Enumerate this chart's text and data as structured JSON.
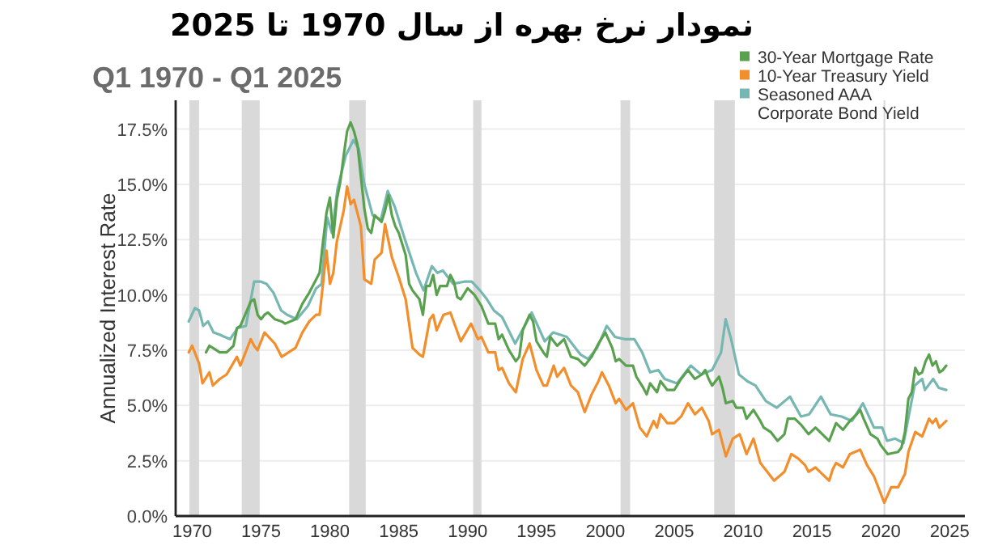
{
  "chart_data": {
    "type": "line",
    "title": "نمودار نرخ بهره از سال 1970 تا 2025",
    "subtitle": "Q1 1970 - Q1 2025",
    "ylabel": "Annualized Interest Rate",
    "xlim": [
      1968.8,
      2026.1
    ],
    "xticks": [
      1970,
      1975,
      1980,
      1985,
      1990,
      1995,
      2000,
      2005,
      2010,
      2015,
      2020,
      2025
    ],
    "ylim": [
      0,
      18.8
    ],
    "yticks": [
      {
        "value": 0,
        "label": "0.0%"
      },
      {
        "value": 2.5,
        "label": "2.5%"
      },
      {
        "value": 5,
        "label": "5.0%"
      },
      {
        "value": 7.5,
        "label": "7.5%"
      },
      {
        "value": 10,
        "label": "10.0%"
      },
      {
        "value": 12.5,
        "label": "12.5%"
      },
      {
        "value": 15,
        "label": "15.0%"
      },
      {
        "value": 17.5,
        "label": "17.5%"
      }
    ],
    "grid": "y",
    "legend": "top right",
    "bands": [
      {
        "axis": "x",
        "from": 1969.8,
        "to": 1970.5,
        "color": "#d9d9d9"
      },
      {
        "axis": "x",
        "from": 1973.6,
        "to": 1974.9,
        "color": "#d9d9d9"
      },
      {
        "axis": "x",
        "from": 1981.4,
        "to": 1982.6,
        "color": "#d9d9d9"
      },
      {
        "axis": "x",
        "from": 1990.4,
        "to": 1991.0,
        "color": "#d9d9d9"
      },
      {
        "axis": "x",
        "from": 2001.1,
        "to": 2001.8,
        "color": "#d9d9d9"
      },
      {
        "axis": "x",
        "from": 2007.9,
        "to": 2009.4,
        "color": "#d9d9d9"
      },
      {
        "axis": "x",
        "from": 2020.2,
        "to": 2020.3,
        "color": "#d9d9d9"
      }
    ],
    "series": [
      {
        "name": "30-Year Mortgage Rate",
        "color": "#59a14f",
        "x": [
          1971.0,
          1971.25,
          1971.5,
          1972.0,
          1972.5,
          1973.0,
          1973.25,
          1973.5,
          1974.25,
          1974.5,
          1974.75,
          1975.0,
          1975.25,
          1975.5,
          1976.0,
          1976.5,
          1976.75,
          1977.5,
          1978.0,
          1978.5,
          1979.0,
          1979.25,
          1979.5,
          1979.75,
          1980.0,
          1980.25,
          1980.5,
          1980.75,
          1981.0,
          1981.25,
          1981.5,
          1981.75,
          1982.0,
          1982.5,
          1982.75,
          1983.0,
          1983.25,
          1983.75,
          1984.0,
          1984.25,
          1984.5,
          1984.75,
          1985.0,
          1985.5,
          1985.75,
          1986.0,
          1986.5,
          1986.75,
          1987.0,
          1987.25,
          1987.5,
          1987.75,
          1988.0,
          1988.5,
          1988.75,
          1989.0,
          1989.25,
          1989.5,
          1990.0,
          1990.5,
          1991.0,
          1991.5,
          1992.0,
          1992.25,
          1992.5,
          1993.0,
          1993.5,
          1993.75,
          1994.0,
          1994.5,
          1994.75,
          1995.0,
          1995.5,
          1995.75,
          1996.0,
          1996.5,
          1997.0,
          1997.5,
          1998.0,
          1998.5,
          1999.0,
          1999.5,
          2000.0,
          2000.5,
          2000.75,
          2001.0,
          2001.5,
          2002.0,
          2002.25,
          2002.75,
          2003.0,
          2003.25,
          2003.75,
          2004.0,
          2004.5,
          2005.0,
          2005.5,
          2006.0,
          2006.5,
          2007.0,
          2007.25,
          2007.5,
          2007.75,
          2008.25,
          2008.5,
          2008.75,
          2009.25,
          2009.5,
          2010.0,
          2010.25,
          2010.75,
          2011.25,
          2011.5,
          2012.0,
          2012.5,
          2013.0,
          2013.25,
          2013.75,
          2014.25,
          2014.75,
          2015.25,
          2015.75,
          2016.25,
          2016.5,
          2016.75,
          2017.25,
          2017.75,
          2018.25,
          2018.5,
          2018.75,
          2019.25,
          2019.75,
          2020.0,
          2020.5,
          2021.25,
          2021.5,
          2021.75,
          2022.0,
          2022.25,
          2022.5,
          2022.75,
          2023.0,
          2023.25,
          2023.5,
          2023.75,
          2024.0,
          2024.25,
          2024.5,
          2024.75
        ],
        "values": [
          7.4,
          7.7,
          7.6,
          7.4,
          7.4,
          7.7,
          8.5,
          8.6,
          9.7,
          9.8,
          9.1,
          8.9,
          9.1,
          9.2,
          8.9,
          8.8,
          8.7,
          8.9,
          9.6,
          10.1,
          10.7,
          11.0,
          12.4,
          13.7,
          14.4,
          12.6,
          14.3,
          15.1,
          16.3,
          17.4,
          17.8,
          17.4,
          16.8,
          13.9,
          13.0,
          12.8,
          13.6,
          13.3,
          13.8,
          14.5,
          13.6,
          13.1,
          12.8,
          11.8,
          10.5,
          10.2,
          9.8,
          9.1,
          10.4,
          10.4,
          10.9,
          10.0,
          10.4,
          10.4,
          10.9,
          10.6,
          9.9,
          9.8,
          10.3,
          10.0,
          9.5,
          8.7,
          8.7,
          8.0,
          8.2,
          7.5,
          7.0,
          7.2,
          8.4,
          9.1,
          8.8,
          7.9,
          7.4,
          7.2,
          8.1,
          7.7,
          8.0,
          7.2,
          7.1,
          6.8,
          7.2,
          7.8,
          8.3,
          7.6,
          7.0,
          7.1,
          6.8,
          6.8,
          6.3,
          5.8,
          5.5,
          6.0,
          5.6,
          6.1,
          5.7,
          5.7,
          6.2,
          6.6,
          6.2,
          6.4,
          6.6,
          6.2,
          5.9,
          6.3,
          5.8,
          5.1,
          5.2,
          4.9,
          4.9,
          4.4,
          4.8,
          4.3,
          4.0,
          3.8,
          3.4,
          3.7,
          4.4,
          4.4,
          4.1,
          3.7,
          4.0,
          3.7,
          3.4,
          3.8,
          4.2,
          3.9,
          4.3,
          4.6,
          4.8,
          4.4,
          3.7,
          3.5,
          3.2,
          2.8,
          2.9,
          3.1,
          3.8,
          5.3,
          5.6,
          6.7,
          6.4,
          6.5,
          7.0,
          7.3,
          6.8,
          7.0,
          6.5,
          6.6,
          6.8
        ]
      },
      {
        "name": "10-Year Treasury Yield",
        "color": "#f28e2b",
        "x": [
          1969.75,
          1970.0,
          1970.5,
          1970.75,
          1971.25,
          1971.5,
          1972.0,
          1972.5,
          1973.25,
          1973.5,
          1974.25,
          1974.5,
          1974.75,
          1975.25,
          1976.0,
          1976.5,
          1977.0,
          1977.5,
          1978.0,
          1978.5,
          1979.0,
          1979.25,
          1979.5,
          1979.75,
          1980.0,
          1980.25,
          1980.5,
          1981.0,
          1981.25,
          1981.5,
          1981.75,
          1982.25,
          1982.5,
          1983.0,
          1983.25,
          1983.75,
          1984.0,
          1984.5,
          1985.0,
          1985.5,
          1986.0,
          1986.5,
          1986.75,
          1987.25,
          1987.5,
          1987.75,
          1988.25,
          1988.75,
          1989.5,
          1990.25,
          1990.75,
          1991.0,
          1991.5,
          1992.0,
          1992.25,
          1992.5,
          1993.0,
          1993.5,
          1994.0,
          1994.5,
          1995.0,
          1995.5,
          1995.75,
          1996.25,
          1996.5,
          1997.0,
          1997.5,
          1998.0,
          1998.5,
          1999.0,
          1999.5,
          1999.75,
          2000.25,
          2000.75,
          2001.0,
          2001.5,
          2002.0,
          2002.5,
          2003.0,
          2003.5,
          2003.75,
          2004.0,
          2004.5,
          2005.0,
          2005.5,
          2006.0,
          2006.5,
          2007.0,
          2007.5,
          2007.75,
          2008.25,
          2008.5,
          2008.75,
          2009.25,
          2009.75,
          2010.25,
          2010.75,
          2011.25,
          2011.75,
          2012.25,
          2013.0,
          2013.5,
          2014.0,
          2014.5,
          2014.75,
          2015.25,
          2015.75,
          2016.25,
          2016.5,
          2016.75,
          2017.25,
          2017.75,
          2018.5,
          2019.0,
          2019.5,
          2019.75,
          2020.25,
          2020.75,
          2021.25,
          2021.75,
          2022.0,
          2022.5,
          2023.0,
          2023.5,
          2023.75,
          2024.0,
          2024.25,
          2024.75
        ],
        "values": [
          7.4,
          7.7,
          6.9,
          6.0,
          6.5,
          5.9,
          6.2,
          6.4,
          7.2,
          6.8,
          8.0,
          7.7,
          7.5,
          8.3,
          7.8,
          7.2,
          7.4,
          7.6,
          8.3,
          8.8,
          9.1,
          9.1,
          10.5,
          12.0,
          10.5,
          11.0,
          12.4,
          13.8,
          14.9,
          14.1,
          14.3,
          13.1,
          10.7,
          10.5,
          11.6,
          11.9,
          13.2,
          11.7,
          10.8,
          9.8,
          7.6,
          7.3,
          7.2,
          8.9,
          9.1,
          8.4,
          9.1,
          9.2,
          7.9,
          8.7,
          8.0,
          8.1,
          7.4,
          7.4,
          6.6,
          6.7,
          6.0,
          5.6,
          7.1,
          7.8,
          6.6,
          5.9,
          5.9,
          6.8,
          6.3,
          6.7,
          5.9,
          5.6,
          4.7,
          5.5,
          6.1,
          6.5,
          5.9,
          5.1,
          5.3,
          4.8,
          5.1,
          4.0,
          3.6,
          4.3,
          4.0,
          4.6,
          4.2,
          4.2,
          4.5,
          5.1,
          4.6,
          4.9,
          4.3,
          3.7,
          3.9,
          3.3,
          2.7,
          3.5,
          3.7,
          2.8,
          3.5,
          2.4,
          2.0,
          1.6,
          2.0,
          2.8,
          2.6,
          2.3,
          2.0,
          2.2,
          1.9,
          1.6,
          2.1,
          2.4,
          2.2,
          2.8,
          3.0,
          2.3,
          1.8,
          1.4,
          0.6,
          1.3,
          1.3,
          1.9,
          2.9,
          3.8,
          3.6,
          4.4,
          4.2,
          4.4,
          4.0,
          4.3
        ]
      },
      {
        "name": "Seasoned AAA Corporate Bond Yield",
        "color": "#76b7b2",
        "x": [
          1969.75,
          1970.2,
          1970.5,
          1970.8,
          1971.15,
          1971.55,
          1972.0,
          1972.35,
          1972.75,
          1973.3,
          1973.9,
          1974.5,
          1975.0,
          1975.4,
          1975.9,
          1976.45,
          1976.9,
          1977.6,
          1978.4,
          1979.0,
          1979.4,
          1979.8,
          1980.15,
          1980.55,
          1981.15,
          1981.7,
          1982.1,
          1982.5,
          1983.1,
          1983.7,
          1984.2,
          1984.7,
          1985.45,
          1986.25,
          1986.8,
          1987.4,
          1987.8,
          1988.2,
          1988.95,
          1989.75,
          1990.3,
          1990.9,
          1991.4,
          1991.9,
          1992.5,
          1993.45,
          1994.65,
          1995.6,
          1996.2,
          1997.2,
          1998.2,
          1998.75,
          1999.4,
          2000.1,
          2000.7,
          2001.4,
          2002.1,
          2002.67,
          2003.25,
          2003.85,
          2004.3,
          2005.2,
          2006.2,
          2006.95,
          2007.75,
          2008.4,
          2008.73,
          2009.13,
          2009.7,
          2010.3,
          2010.9,
          2011.65,
          2012.45,
          2013.4,
          2014.2,
          2014.8,
          2015.65,
          2016.35,
          2017.15,
          2017.9,
          2018.7,
          2019.5,
          2020.1,
          2020.45,
          2021.05,
          2021.65,
          2022.45,
          2023.0,
          2023.2,
          2023.8,
          2024.2,
          2024.75
        ],
        "values": [
          8.8,
          9.4,
          9.3,
          8.6,
          8.8,
          8.3,
          8.2,
          8.1,
          8.0,
          8.5,
          8.6,
          10.6,
          10.6,
          10.5,
          10.1,
          9.3,
          9.1,
          8.9,
          9.5,
          10.3,
          10.5,
          13.5,
          12.8,
          14.8,
          16.3,
          17.0,
          16.6,
          15.0,
          13.6,
          13.4,
          14.7,
          14.0,
          12.5,
          11.0,
          10.2,
          11.3,
          11.0,
          11.1,
          10.5,
          10.6,
          10.6,
          10.2,
          9.8,
          9.3,
          9.0,
          7.8,
          9.2,
          7.9,
          8.3,
          8.1,
          7.3,
          7.1,
          7.6,
          8.6,
          8.1,
          8.0,
          8.0,
          7.4,
          6.5,
          6.6,
          6.2,
          6.0,
          6.8,
          6.4,
          6.6,
          7.4,
          8.9,
          8.0,
          6.4,
          6.1,
          5.9,
          5.2,
          4.9,
          5.4,
          4.5,
          4.6,
          5.4,
          4.6,
          4.5,
          4.3,
          5.1,
          4.0,
          4.0,
          3.4,
          3.5,
          3.3,
          5.9,
          6.2,
          5.7,
          6.2,
          5.8,
          5.7
        ]
      }
    ]
  }
}
